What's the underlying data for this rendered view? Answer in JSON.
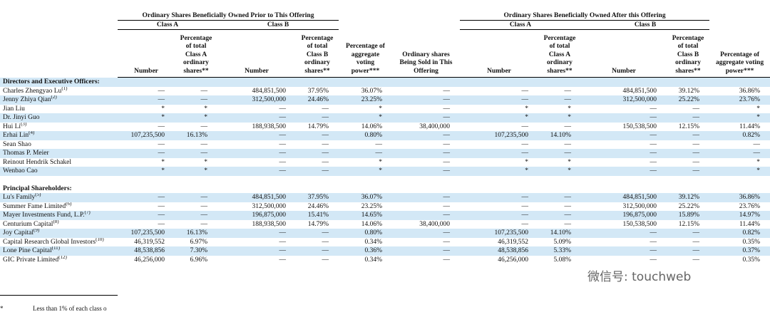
{
  "header": {
    "groups": [
      {
        "title": "Ordinary Shares Beneficially Owned Prior to This Offering",
        "classes": [
          "Class A",
          "Class B"
        ]
      },
      {
        "title": "Ordinary Shares Beneficially Owned After this Offering",
        "classes": [
          "Class A",
          "Class B"
        ]
      }
    ],
    "columns": [
      "Number",
      "Percentage of total Class A ordinary shares**",
      "Number",
      "Percentage of total Class B ordinary shares**",
      "Percentage of aggregate voting power***",
      "Ordinary shares Being Sold in This Offering",
      "Number",
      "Percentage of total Class A ordinary shares**",
      "Number",
      "Percentage of total Class B ordinary shares**",
      "Percentage of aggregate voting power***"
    ]
  },
  "sections": [
    {
      "title": "Directors and Executive Officers:",
      "rows": [
        {
          "name": "Charles Zhengyao Lu",
          "note": "(1)",
          "cells": [
            "—",
            "—",
            "484,851,500",
            "37.95%",
            "36.07%",
            "—",
            "—",
            "—",
            "484,851,500",
            "39.12%",
            "36.86%"
          ]
        },
        {
          "name": "Jenny Zhiya Qian",
          "note": "(2)",
          "cells": [
            "—",
            "—",
            "312,500,000",
            "24.46%",
            "23.25%",
            "—",
            "—",
            "—",
            "312,500,000",
            "25.22%",
            "23.76%"
          ]
        },
        {
          "name": "Jian Liu",
          "cells": [
            "*",
            "*",
            "—",
            "—",
            "*",
            "—",
            "*",
            "*",
            "—",
            "—",
            "*"
          ]
        },
        {
          "name": "Dr. Jinyi Guo",
          "cells": [
            "*",
            "*",
            "—",
            "—",
            "*",
            "—",
            "*",
            "*",
            "—",
            "—",
            "*"
          ]
        },
        {
          "name": "Hui Li",
          "note": "(3)",
          "cells": [
            "—",
            "—",
            "188,938,500",
            "14.79%",
            "14.06%",
            "38,400,000",
            "—",
            "—",
            "150,538,500",
            "12.15%",
            "11.44%"
          ]
        },
        {
          "name": "Erhai Lin",
          "note": "(4)",
          "cells": [
            "107,235,500",
            "16.13%",
            "—",
            "—",
            "0.80%",
            "—",
            "107,235,500",
            "14.10%",
            "—",
            "—",
            "0.82%"
          ]
        },
        {
          "name": "Sean Shao",
          "cells": [
            "—",
            "—",
            "—",
            "—",
            "—",
            "—",
            "—",
            "—",
            "—",
            "—",
            "—"
          ]
        },
        {
          "name": "Thomas P. Meier",
          "cells": [
            "—",
            "—",
            "—",
            "—",
            "—",
            "—",
            "—",
            "—",
            "—",
            "—",
            "—"
          ]
        },
        {
          "name": "Reinout Hendrik Schakel",
          "cells": [
            "*",
            "*",
            "—",
            "—",
            "*",
            "—",
            "*",
            "*",
            "—",
            "—",
            "*"
          ]
        },
        {
          "name": "Wenbao Cao",
          "cells": [
            "*",
            "*",
            "—",
            "—",
            "*",
            "—",
            "*",
            "*",
            "—",
            "—",
            "*"
          ]
        }
      ]
    },
    {
      "title": "Principal Shareholders:",
      "rows": [
        {
          "name": "Lu's Family",
          "note": "(5)",
          "cells": [
            "—",
            "—",
            "484,851,500",
            "37.95%",
            "36.07%",
            "—",
            "—",
            "—",
            "484,851,500",
            "39.12%",
            "36.86%"
          ]
        },
        {
          "name": "Summer Fame Limited",
          "note": "(6)",
          "cells": [
            "—",
            "—",
            "312,500,000",
            "24.46%",
            "23.25%",
            "—",
            "—",
            "—",
            "312,500,000",
            "25.22%",
            "23.76%"
          ]
        },
        {
          "name": "Mayer Investments Fund, L.P.",
          "note": "(7)",
          "cells": [
            "—",
            "—",
            "196,875,000",
            "15.41%",
            "14.65%",
            "—",
            "—",
            "—",
            "196,875,000",
            "15.89%",
            "14.97%"
          ]
        },
        {
          "name": "Centurium Capital",
          "note": "(8)",
          "cells": [
            "—",
            "—",
            "188,938,500",
            "14.79%",
            "14.06%",
            "38,400,000",
            "—",
            "—",
            "150,538,500",
            "12.15%",
            "11.44%"
          ]
        },
        {
          "name": "Joy Capital",
          "note": "(9)",
          "cells": [
            "107,235,500",
            "16.13%",
            "—",
            "—",
            "0.80%",
            "—",
            "107,235,500",
            "14.10%",
            "—",
            "—",
            "0.82%"
          ]
        },
        {
          "name": "Capital Research Global Investors",
          "note": "(10)",
          "cells": [
            "46,319,552",
            "6.97%",
            "—",
            "—",
            "0.34%",
            "—",
            "46,319,552",
            "5.09%",
            "—",
            "—",
            "0.35%"
          ]
        },
        {
          "name": "Lone Pine Capital",
          "note": "(11)",
          "cells": [
            "48,538,856",
            "7.30%",
            "—",
            "—",
            "0.36%",
            "—",
            "48,538,856",
            "5.33%",
            "—",
            "—",
            "0.37%"
          ]
        },
        {
          "name": "GIC Private Limited",
          "note": "(12)",
          "cells": [
            "46,256,000",
            "6.96%",
            "—",
            "—",
            "0.34%",
            "—",
            "46,256,000",
            "5.08%",
            "—",
            "—",
            "0.35%"
          ]
        }
      ]
    }
  ],
  "footnotes": [
    {
      "mark": "*",
      "text": "Less than 1% of each class o"
    }
  ],
  "watermark": "微信号: touchweb"
}
